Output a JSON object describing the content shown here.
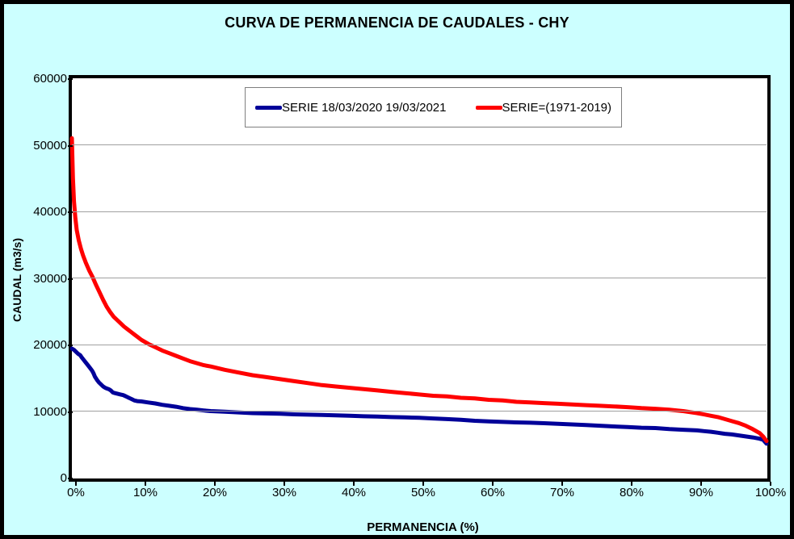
{
  "title": "CURVA DE PERMANENCIA DE CAUDALES - CHY",
  "colors": {
    "background": "#CCFFFF",
    "plot_background": "#FFFFFF",
    "chart_border": "#000000",
    "gridline": "#A0A0A0",
    "legend_border": "#7F7F7F",
    "series_blue": "#000099",
    "series_red": "#FF0000"
  },
  "chart_data": {
    "type": "line",
    "title": "CURVA DE PERMANENCIA DE CAUDALES - CHY",
    "xlabel": "PERMANENCIA (%)",
    "ylabel": "CAUDAL (m3/s)",
    "xlim": [
      0,
      100
    ],
    "ylim": [
      0,
      60000
    ],
    "x_tick_labels": [
      "0%",
      "10%",
      "20%",
      "30%",
      "40%",
      "50%",
      "60%",
      "70%",
      "80%",
      "90%",
      "100%"
    ],
    "y_tick_values": [
      0,
      10000,
      20000,
      30000,
      40000,
      50000,
      60000
    ],
    "y_tick_labels": [
      "0",
      "10000",
      "20000",
      "30000",
      "40000",
      "50000",
      "60000"
    ],
    "grid": "horizontal",
    "legend_position": "top-center-inside",
    "series": [
      {
        "name": "SERIE 18/03/2020 19/03/2021",
        "color": "#000099",
        "points": [
          [
            0,
            19400
          ],
          [
            0.3,
            19200
          ],
          [
            0.6,
            18900
          ],
          [
            0.9,
            18600
          ],
          [
            1.2,
            18400
          ],
          [
            1.4,
            18100
          ],
          [
            1.7,
            17700
          ],
          [
            2,
            17300
          ],
          [
            2.3,
            16900
          ],
          [
            2.6,
            16500
          ],
          [
            2.9,
            16100
          ],
          [
            3.1,
            15700
          ],
          [
            3.3,
            15200
          ],
          [
            3.6,
            14700
          ],
          [
            3.9,
            14300
          ],
          [
            4.2,
            14000
          ],
          [
            4.5,
            13700
          ],
          [
            4.8,
            13500
          ],
          [
            5,
            13400
          ],
          [
            5.3,
            13300
          ],
          [
            5.6,
            13100
          ],
          [
            5.9,
            12800
          ],
          [
            6.2,
            12700
          ],
          [
            6.6,
            12600
          ],
          [
            7,
            12500
          ],
          [
            7.4,
            12400
          ],
          [
            7.8,
            12200
          ],
          [
            8.2,
            12000
          ],
          [
            8.6,
            11800
          ],
          [
            9,
            11600
          ],
          [
            9.4,
            11500
          ],
          [
            10,
            11450
          ],
          [
            11,
            11300
          ],
          [
            12,
            11150
          ],
          [
            13,
            10950
          ],
          [
            14,
            10800
          ],
          [
            15,
            10650
          ],
          [
            16,
            10450
          ],
          [
            17,
            10300
          ],
          [
            18,
            10200
          ],
          [
            19,
            10100
          ],
          [
            20,
            10000
          ],
          [
            22,
            9900
          ],
          [
            24,
            9800
          ],
          [
            26,
            9700
          ],
          [
            28,
            9650
          ],
          [
            30,
            9600
          ],
          [
            32,
            9520
          ],
          [
            34,
            9470
          ],
          [
            36,
            9420
          ],
          [
            38,
            9360
          ],
          [
            40,
            9300
          ],
          [
            42,
            9230
          ],
          [
            44,
            9170
          ],
          [
            46,
            9100
          ],
          [
            48,
            9050
          ],
          [
            50,
            9000
          ],
          [
            52,
            8900
          ],
          [
            54,
            8800
          ],
          [
            56,
            8700
          ],
          [
            58,
            8550
          ],
          [
            60,
            8450
          ],
          [
            62,
            8380
          ],
          [
            64,
            8300
          ],
          [
            66,
            8250
          ],
          [
            68,
            8180
          ],
          [
            70,
            8100
          ],
          [
            72,
            8000
          ],
          [
            74,
            7900
          ],
          [
            76,
            7800
          ],
          [
            78,
            7700
          ],
          [
            80,
            7600
          ],
          [
            82,
            7500
          ],
          [
            84,
            7450
          ],
          [
            86,
            7300
          ],
          [
            88,
            7200
          ],
          [
            90,
            7100
          ],
          [
            91,
            7000
          ],
          [
            92,
            6900
          ],
          [
            93,
            6750
          ],
          [
            94,
            6600
          ],
          [
            95,
            6500
          ],
          [
            96,
            6350
          ],
          [
            97,
            6200
          ],
          [
            98,
            6050
          ],
          [
            99,
            5850
          ],
          [
            99.5,
            5700
          ],
          [
            100,
            5100
          ]
        ]
      },
      {
        "name": "SERIE=(1971-2019)",
        "color": "#FF0000",
        "points": [
          [
            0,
            51000
          ],
          [
            0.15,
            45000
          ],
          [
            0.3,
            41500
          ],
          [
            0.5,
            39000
          ],
          [
            0.7,
            37200
          ],
          [
            1,
            35600
          ],
          [
            1.3,
            34400
          ],
          [
            1.6,
            33400
          ],
          [
            2,
            32300
          ],
          [
            2.5,
            31100
          ],
          [
            3,
            30100
          ],
          [
            3.5,
            28900
          ],
          [
            4,
            27800
          ],
          [
            4.5,
            26700
          ],
          [
            5,
            25700
          ],
          [
            5.5,
            24900
          ],
          [
            6,
            24200
          ],
          [
            6.5,
            23700
          ],
          [
            7,
            23200
          ],
          [
            7.5,
            22700
          ],
          [
            8,
            22300
          ],
          [
            8.5,
            21900
          ],
          [
            9,
            21500
          ],
          [
            9.5,
            21100
          ],
          [
            10,
            20700
          ],
          [
            11,
            20100
          ],
          [
            12,
            19600
          ],
          [
            13,
            19100
          ],
          [
            14,
            18700
          ],
          [
            15,
            18300
          ],
          [
            16,
            17900
          ],
          [
            17,
            17500
          ],
          [
            18,
            17200
          ],
          [
            19,
            16900
          ],
          [
            20,
            16700
          ],
          [
            22,
            16200
          ],
          [
            24,
            15800
          ],
          [
            26,
            15400
          ],
          [
            28,
            15100
          ],
          [
            30,
            14800
          ],
          [
            32,
            14500
          ],
          [
            34,
            14200
          ],
          [
            36,
            13900
          ],
          [
            38,
            13700
          ],
          [
            40,
            13500
          ],
          [
            42,
            13300
          ],
          [
            44,
            13100
          ],
          [
            46,
            12900
          ],
          [
            48,
            12700
          ],
          [
            50,
            12500
          ],
          [
            52,
            12300
          ],
          [
            54,
            12200
          ],
          [
            56,
            12000
          ],
          [
            58,
            11900
          ],
          [
            60,
            11700
          ],
          [
            62,
            11600
          ],
          [
            64,
            11400
          ],
          [
            66,
            11300
          ],
          [
            68,
            11200
          ],
          [
            70,
            11100
          ],
          [
            72,
            11000
          ],
          [
            74,
            10900
          ],
          [
            76,
            10800
          ],
          [
            78,
            10700
          ],
          [
            80,
            10600
          ],
          [
            82,
            10450
          ],
          [
            84,
            10350
          ],
          [
            86,
            10200
          ],
          [
            88,
            10000
          ],
          [
            90,
            9700
          ],
          [
            91,
            9500
          ],
          [
            92,
            9300
          ],
          [
            93,
            9100
          ],
          [
            94,
            8800
          ],
          [
            95,
            8500
          ],
          [
            96,
            8200
          ],
          [
            97,
            7800
          ],
          [
            98,
            7300
          ],
          [
            99,
            6700
          ],
          [
            99.5,
            6200
          ],
          [
            100,
            5500
          ]
        ]
      }
    ]
  }
}
